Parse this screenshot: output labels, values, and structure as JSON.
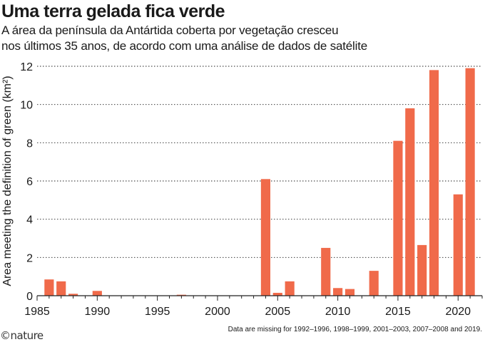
{
  "header": {
    "title": "Uma terra gelada fica verde",
    "subtitle_line1": "A área da península da Antártida coberta por vegetação cresceu",
    "subtitle_line2": "nos últimos 35 anos, de acordo com uma análise de dados de satélite"
  },
  "footer": {
    "note": "Data are missing for 1992–1996, 1998–1999, 2001–2003, 2007–2008 and 2019.",
    "credit": "©nature"
  },
  "colors": {
    "bar": "#f06a4a",
    "grid": "#222222",
    "axis": "#222222"
  },
  "chart_data": {
    "type": "bar",
    "title": "Uma terra gelada fica verde",
    "xlabel": "",
    "ylabel": "Area meeting the definition of green (km²)",
    "ylim": [
      0,
      12
    ],
    "xlim": [
      1985,
      2022
    ],
    "grid": true,
    "x_ticks": [
      1985,
      1990,
      1995,
      2000,
      2005,
      2010,
      2015,
      2020
    ],
    "y_ticks": [
      0,
      2,
      4,
      6,
      8,
      10,
      12
    ],
    "categories": [
      1986,
      1987,
      1988,
      1990,
      1997,
      2004,
      2005,
      2006,
      2009,
      2010,
      2011,
      2013,
      2015,
      2016,
      2017,
      2018,
      2020,
      2021
    ],
    "values": [
      0.85,
      0.75,
      0.1,
      0.25,
      0.05,
      6.1,
      0.15,
      0.75,
      2.5,
      0.4,
      0.35,
      1.3,
      8.1,
      9.8,
      2.65,
      11.8,
      5.3,
      11.9
    ]
  }
}
